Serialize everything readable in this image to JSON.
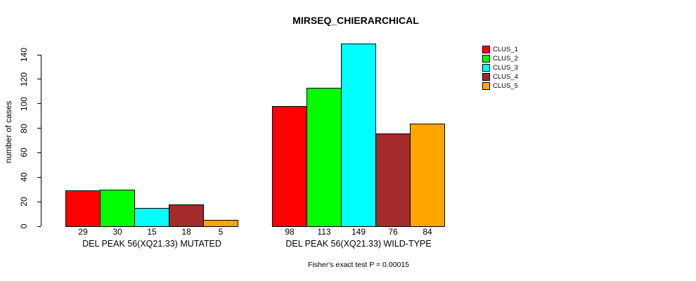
{
  "chart_data": {
    "type": "bar",
    "title": "MIRSEQ_CHIERARCHICAL",
    "ylabel": "number of cases",
    "xlabel": "",
    "ylim": [
      0,
      140
    ],
    "yticks": [
      0,
      20,
      40,
      60,
      80,
      100,
      120,
      140
    ],
    "grid": false,
    "bar_border_color": "#000000",
    "legend_position": "top-right",
    "categories": [
      "DEL PEAK 56(XQ21.33) MUTATED",
      "DEL PEAK 56(XQ21.33) WILD-TYPE"
    ],
    "series": [
      {
        "name": "CLUS_1",
        "color": "#FF0000",
        "values": [
          29,
          98
        ]
      },
      {
        "name": "CLUS_2",
        "color": "#00FF00",
        "values": [
          30,
          113
        ]
      },
      {
        "name": "CLUS_3",
        "color": "#00FFFF",
        "values": [
          15,
          149
        ]
      },
      {
        "name": "CLUS_4",
        "color": "#A52A2A",
        "values": [
          18,
          76
        ]
      },
      {
        "name": "CLUS_5",
        "color": "#FFA500",
        "values": [
          5,
          84
        ]
      }
    ],
    "value_labels_shown": true,
    "annotation": "Fisher's exact test P = 0.00015"
  }
}
